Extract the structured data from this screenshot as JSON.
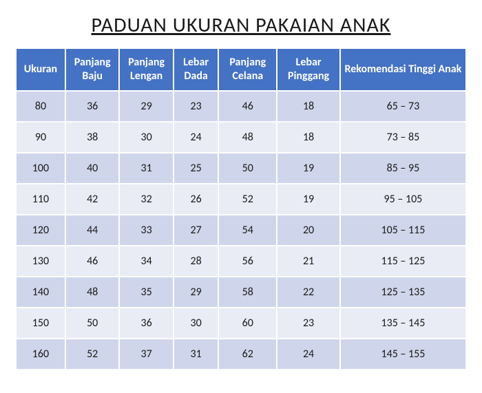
{
  "title": "PADUAN UKURAN PAKAIAN ANAK",
  "table": {
    "type": "table",
    "header_bg": "#4472c4",
    "header_text_color": "#ffffff",
    "row_odd_bg": "#cfd5ea",
    "row_even_bg": "#e9ebf5",
    "border_color": "#ffffff",
    "title_fontsize": 30,
    "header_fontsize": 16,
    "cell_fontsize": 16,
    "columns": [
      {
        "label": "Ukuran",
        "width_pct": 11
      },
      {
        "label": "Panjang Baju",
        "width_pct": 12
      },
      {
        "label": "Panjang Lengan",
        "width_pct": 12
      },
      {
        "label": "Lebar Dada",
        "width_pct": 10
      },
      {
        "label": "Panjang Celana",
        "width_pct": 13
      },
      {
        "label": "Lebar Pinggang",
        "width_pct": 14
      },
      {
        "label": "Rekomendasi Tinggi Anak",
        "width_pct": 28
      }
    ],
    "rows": [
      [
        "80",
        "36",
        "29",
        "23",
        "46",
        "18",
        "65 – 73"
      ],
      [
        "90",
        "38",
        "30",
        "24",
        "48",
        "18",
        "73 – 85"
      ],
      [
        "100",
        "40",
        "31",
        "25",
        "50",
        "19",
        "85 – 95"
      ],
      [
        "110",
        "42",
        "32",
        "26",
        "52",
        "19",
        "95 – 105"
      ],
      [
        "120",
        "44",
        "33",
        "27",
        "54",
        "20",
        "105 – 115"
      ],
      [
        "130",
        "46",
        "34",
        "28",
        "56",
        "21",
        "115 – 125"
      ],
      [
        "140",
        "48",
        "35",
        "29",
        "58",
        "22",
        "125 – 135"
      ],
      [
        "150",
        "50",
        "36",
        "30",
        "60",
        "23",
        "135 – 145"
      ],
      [
        "160",
        "52",
        "37",
        "31",
        "62",
        "24",
        "145 – 155"
      ]
    ]
  }
}
